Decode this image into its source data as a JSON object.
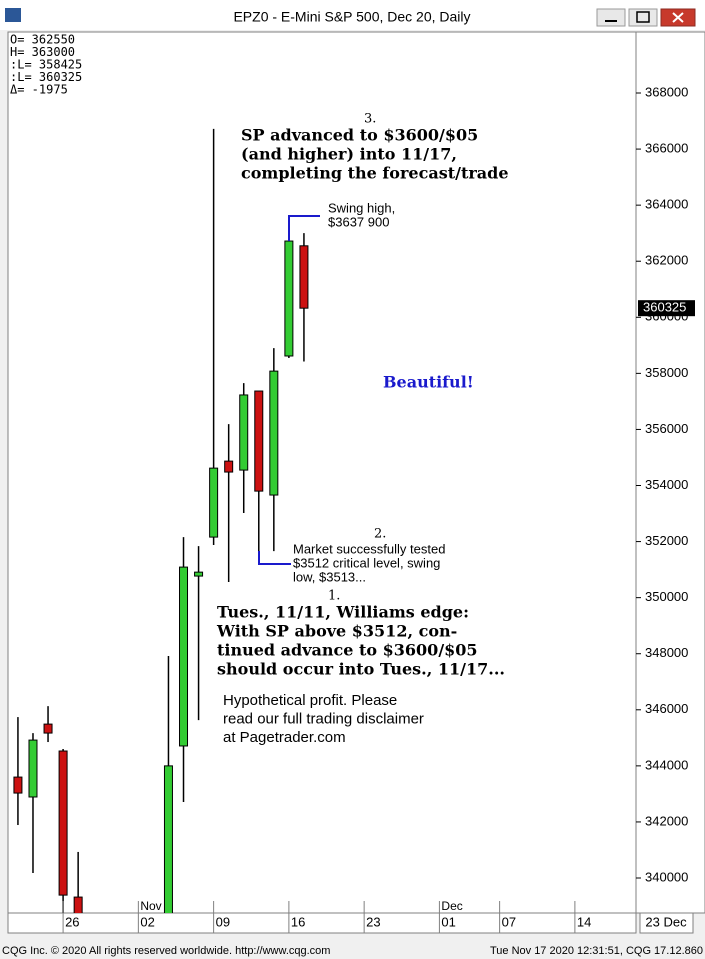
{
  "window": {
    "title": "EPZ0 - E-Mini S&P 500, Dec 20, Daily",
    "footer_left": "CQG Inc. © 2020 All rights reserved worldwide. http://www.cqg.com",
    "footer_right": "Tue Nov 17 2020 12:31:51, CQG 17.12.860",
    "readout": [
      "O= 362550",
      "H= 363000",
      ":L= 358425",
      ":L= 360325",
      "Δ=   -1975"
    ],
    "corner_label": "23  Dec"
  },
  "chart_data": {
    "type": "candlestick",
    "x": [
      0,
      1,
      2,
      3,
      4,
      10,
      11,
      12,
      13,
      14,
      15,
      16,
      17,
      18,
      19
    ],
    "open": [
      343600,
      342890,
      345490,
      344530,
      339320,
      337500,
      344710,
      350770,
      352160,
      354870,
      354550,
      357370,
      353660,
      358620,
      362550
    ],
    "high": [
      345740,
      345170,
      346130,
      344600,
      340930,
      347920,
      352160,
      351840,
      366720,
      356190,
      357650,
      357370,
      358900,
      363610,
      363000
    ],
    "low": [
      341890,
      340180,
      344850,
      338600,
      336500,
      336800,
      342710,
      345630,
      351880,
      350560,
      353020,
      351240,
      351660,
      358550,
      358425
    ],
    "close": [
      343030,
      344920,
      345170,
      339390,
      337500,
      344000,
      351090,
      350910,
      354620,
      354480,
      357230,
      353800,
      358080,
      362720,
      360325
    ],
    "up_color": "#33cc33",
    "down_color": "#cc1111",
    "xlim": [
      -0.66,
      41.06
    ],
    "xticks": [
      {
        "value": 3,
        "label": "26"
      },
      {
        "value": 8,
        "label": "02"
      },
      {
        "value": 13,
        "label": "09"
      },
      {
        "value": 18,
        "label": "16"
      },
      {
        "value": 23,
        "label": "23"
      },
      {
        "value": 28,
        "label": "01"
      },
      {
        "value": 32,
        "label": "07"
      },
      {
        "value": 37,
        "label": "14"
      }
    ],
    "month_labels": [
      {
        "value": 8,
        "label": "Nov"
      },
      {
        "value": 28,
        "label": "Dec"
      }
    ],
    "ylim": [
      338752,
      370176
    ],
    "yticks": [
      340000,
      342000,
      344000,
      346000,
      348000,
      350000,
      352000,
      354000,
      356000,
      358000,
      360000,
      362000,
      364000,
      366000,
      368000
    ],
    "last_price": {
      "value": 360325,
      "label": "360325"
    },
    "annotations": {
      "n3": "3.",
      "a3": [
        "SP advanced to $3600/$05",
        "(and higher) into 11/17,",
        "completing the forecast/trade"
      ],
      "swing_high": [
        "Swing high,",
        "$3637 900"
      ],
      "beautiful": "Beautiful!",
      "n2": "2.",
      "a2": [
        "Market successfully tested",
        "$3512 critical level, swing",
        "low, $3513..."
      ],
      "n1": "1.",
      "a1": [
        "Tues., 11/11, Williams edge:",
        "With SP above $3512, con-",
        "tinued advance to $3600/$05",
        "should occur into Tues., 11/17..."
      ],
      "disclaimer": [
        "Hypothetical profit. Please",
        "read our full trading disclaimer",
        "at Pagetrader.com"
      ]
    }
  }
}
